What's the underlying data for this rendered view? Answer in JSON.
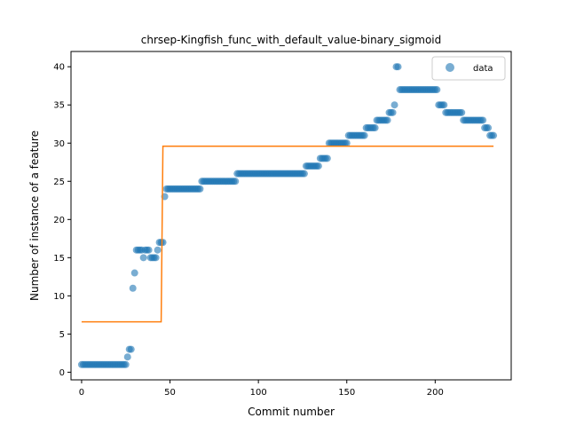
{
  "chart_data": {
    "type": "scatter",
    "title": "chrsep-Kingfish_func_with_default_value-binary_sigmoid",
    "xlabel": "Commit number",
    "ylabel": "Number of instance of a feature",
    "xlim": [
      -6,
      243
    ],
    "ylim": [
      -1,
      42
    ],
    "xticks": [
      0,
      50,
      100,
      150,
      200
    ],
    "yticks": [
      0,
      5,
      10,
      15,
      20,
      25,
      30,
      35,
      40
    ],
    "legend": {
      "position": "top-right",
      "entries": [
        "data"
      ]
    },
    "colors": {
      "data": "#1f77b4",
      "fit": "#ff7f0e"
    },
    "series": [
      {
        "name": "data",
        "kind": "scatter",
        "runs": [
          {
            "x_start": 0,
            "x_end": 25,
            "y": 1
          },
          {
            "x_start": 26,
            "x_end": 26,
            "y": 2
          },
          {
            "x_start": 27,
            "x_end": 28,
            "y": 3
          },
          {
            "x_start": 29,
            "x_end": 29,
            "y": 11
          },
          {
            "x_start": 30,
            "x_end": 30,
            "y": 13
          },
          {
            "x_start": 31,
            "x_end": 34,
            "y": 16
          },
          {
            "x_start": 35,
            "x_end": 35,
            "y": 15
          },
          {
            "x_start": 36,
            "x_end": 38,
            "y": 16
          },
          {
            "x_start": 39,
            "x_end": 42,
            "y": 15
          },
          {
            "x_start": 43,
            "x_end": 43,
            "y": 16
          },
          {
            "x_start": 44,
            "x_end": 46,
            "y": 17
          },
          {
            "x_start": 47,
            "x_end": 47,
            "y": 23
          },
          {
            "x_start": 48,
            "x_end": 67,
            "y": 24
          },
          {
            "x_start": 68,
            "x_end": 87,
            "y": 25
          },
          {
            "x_start": 88,
            "x_end": 126,
            "y": 26
          },
          {
            "x_start": 127,
            "x_end": 134,
            "y": 27
          },
          {
            "x_start": 135,
            "x_end": 139,
            "y": 28
          },
          {
            "x_start": 140,
            "x_end": 150,
            "y": 30
          },
          {
            "x_start": 151,
            "x_end": 160,
            "y": 31
          },
          {
            "x_start": 161,
            "x_end": 166,
            "y": 32
          },
          {
            "x_start": 167,
            "x_end": 173,
            "y": 33
          },
          {
            "x_start": 174,
            "x_end": 176,
            "y": 34
          },
          {
            "x_start": 177,
            "x_end": 177,
            "y": 35
          },
          {
            "x_start": 178,
            "x_end": 179,
            "y": 40
          },
          {
            "x_start": 180,
            "x_end": 201,
            "y": 37
          },
          {
            "x_start": 202,
            "x_end": 205,
            "y": 35
          },
          {
            "x_start": 206,
            "x_end": 215,
            "y": 34
          },
          {
            "x_start": 216,
            "x_end": 227,
            "y": 33
          },
          {
            "x_start": 228,
            "x_end": 230,
            "y": 32
          },
          {
            "x_start": 231,
            "x_end": 233,
            "y": 31
          }
        ]
      },
      {
        "kind": "line",
        "x": [
          0,
          45,
          46,
          233
        ],
        "y": [
          6.6,
          6.6,
          29.6,
          29.6
        ]
      }
    ]
  }
}
